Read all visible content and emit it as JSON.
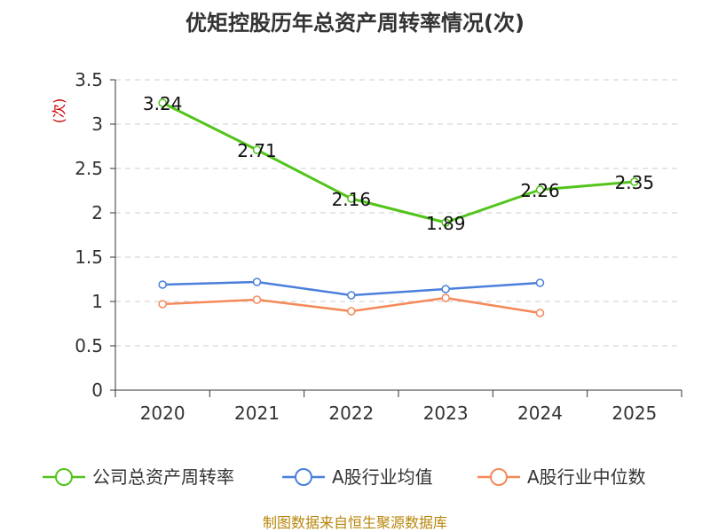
{
  "chart_data": {
    "type": "line",
    "title": "优矩控股历年总资产周转率情况(次)",
    "ylabel": "(次)",
    "xlabel": "",
    "categories": [
      "2020",
      "2021",
      "2022",
      "2023",
      "2024",
      "2025"
    ],
    "ylim": [
      0,
      3.5
    ],
    "yticks": [
      "0",
      "0.5",
      "1",
      "1.5",
      "2",
      "2.5",
      "3",
      "3.5"
    ],
    "grid": true,
    "legend_position": "bottom",
    "series": [
      {
        "name": "公司总资产周转率",
        "color": "#52c41a",
        "values": [
          3.24,
          2.71,
          2.16,
          1.89,
          2.26,
          2.35
        ],
        "labels": [
          "3.24",
          "2.71",
          "2.16",
          "1.89",
          "2.26",
          "2.35"
        ]
      },
      {
        "name": "A股行业均值",
        "color": "#4a7fdc",
        "values": [
          1.19,
          1.22,
          1.07,
          1.14,
          1.21,
          null
        ]
      },
      {
        "name": "A股行业中位数",
        "color": "#f5895a",
        "values": [
          0.97,
          1.02,
          0.89,
          1.04,
          0.87,
          null
        ]
      }
    ]
  },
  "source": "制图数据来自恒生聚源数据库"
}
